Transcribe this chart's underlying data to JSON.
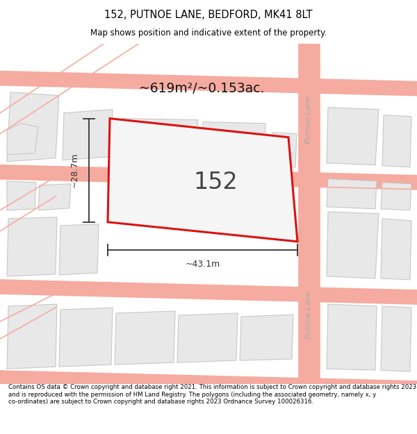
{
  "title": "152, PUTNOE LANE, BEDFORD, MK41 8LT",
  "subtitle": "Map shows position and indicative extent of the property.",
  "area_text": "~619m²/~0.153ac.",
  "property_number": "152",
  "dim_width": "~43.1m",
  "dim_height": "~28.7m",
  "footer_text": "Contains OS data © Crown copyright and database right 2021. This information is subject to Crown copyright and database rights 2023 and is reproduced with the permission of HM Land Registry. The polygons (including the associated geometry, namely x, y co-ordinates) are subject to Crown copyright and database rights 2023 Ordnance Survey 100026316.",
  "bg_color": "#ffffff",
  "map_bg": "#ffffff",
  "road_color": "#f5aba0",
  "road_fill": "#ffffff",
  "building_fill": "#e8e8e8",
  "building_edge": "#c8c8c8",
  "highlight_fill": "#f5f5f5",
  "highlight_edge": "#dd1111",
  "title_color": "#000000",
  "footer_color": "#000000",
  "road_label": "Putnoe Lane",
  "road_label2": "Putnoe Lane",
  "dim_color": "#333333",
  "area_color": "#111111",
  "number_color": "#444444"
}
